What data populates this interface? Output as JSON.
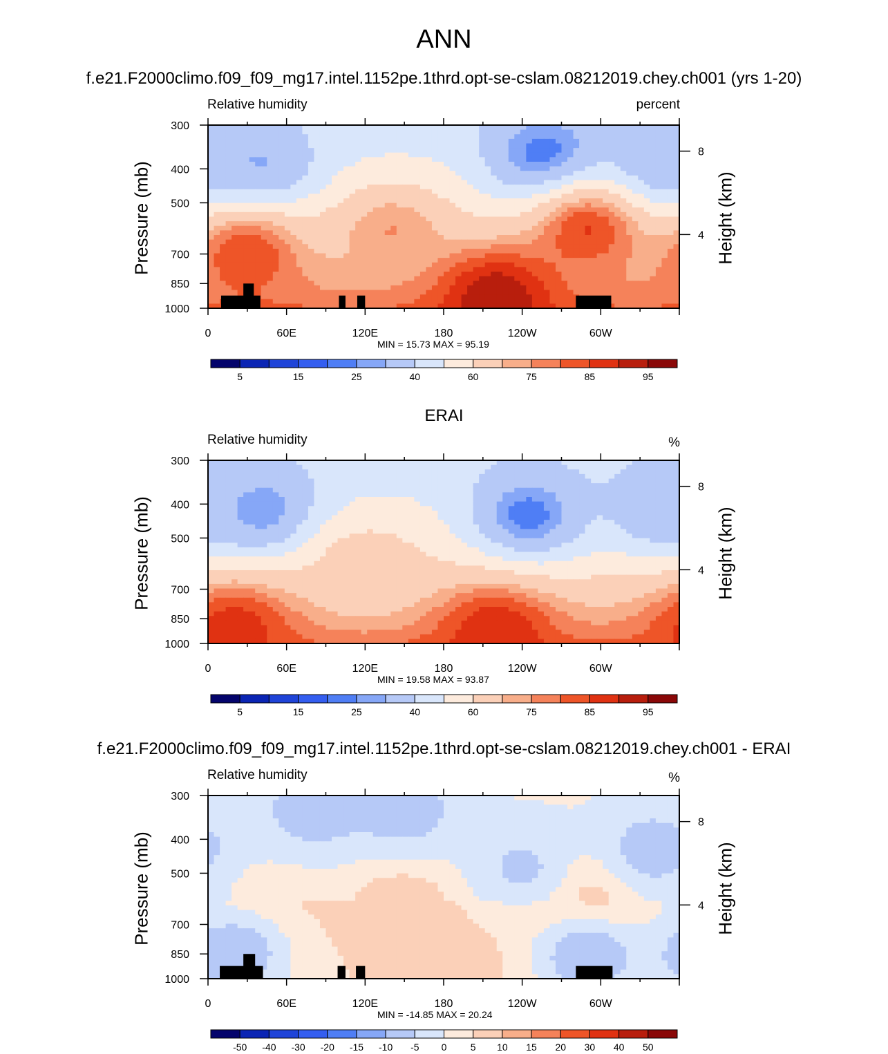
{
  "page_title": "ANN",
  "chart_data": [
    {
      "type": "heatmap",
      "title": "f.e21.F2000climo.f09_f09_mg17.intel.1152pe.1thrd.opt-se-cslam.08212019.chey.ch001 (yrs 1-20)",
      "left_string": "Relative humidity",
      "right_string": "percent",
      "ylabel": "Pressure (mb)",
      "ylabel_right": "Height (km)",
      "x_ticks": [
        "0",
        "60E",
        "120E",
        "180",
        "120W",
        "60W"
      ],
      "y_ticks": [
        "300",
        "400",
        "500",
        "700",
        "850",
        "1000"
      ],
      "y_right_ticks": [
        "8",
        "4"
      ],
      "xlim": [
        0,
        360
      ],
      "ylim": [
        1000,
        300
      ],
      "stats": "MIN =  15.73  MAX =  95.19",
      "colorbar_labels": [
        "5",
        "15",
        "25",
        "40",
        "60",
        "75",
        "85",
        "95"
      ],
      "colorbar_levels": [
        5,
        10,
        15,
        20,
        25,
        30,
        40,
        50,
        60,
        70,
        75,
        80,
        85,
        90,
        95
      ],
      "colorbar_colors": [
        "#04046c",
        "#0b25b4",
        "#1f44d8",
        "#345ef0",
        "#4f7ef5",
        "#86a7f7",
        "#b6c9f7",
        "#d9e6fb",
        "#fdebdd",
        "#fbd0b8",
        "#f8ae8a",
        "#f5825a",
        "#ee5528",
        "#e03212",
        "#b81e0d",
        "#8a0808"
      ],
      "features": [
        {
          "lon": 258,
          "p": 370,
          "value": 20
        },
        {
          "lon": 40,
          "p": 400,
          "value": 28
        },
        {
          "lon": 345,
          "p": 400,
          "value": 28
        },
        {
          "lon": 30,
          "p": 700,
          "value": 85
        },
        {
          "lon": 140,
          "p": 600,
          "value": 75
        },
        {
          "lon": 290,
          "p": 600,
          "value": 85
        },
        {
          "lon": 220,
          "p": 920,
          "value": 95
        }
      ],
      "terrain_masks": [
        {
          "lon_start": 10,
          "lon_end": 40,
          "p_top": 920
        },
        {
          "lon_start": 27,
          "lon_end": 35,
          "p_top": 850
        },
        {
          "lon_start": 100,
          "lon_end": 105,
          "p_top": 920
        },
        {
          "lon_start": 114,
          "lon_end": 120,
          "p_top": 920
        },
        {
          "lon_start": 281,
          "lon_end": 308,
          "p_top": 920
        }
      ]
    },
    {
      "type": "heatmap",
      "title": "ERAI",
      "left_string": "Relative humidity",
      "right_string": "%",
      "ylabel": "Pressure (mb)",
      "ylabel_right": "Height (km)",
      "x_ticks": [
        "0",
        "60E",
        "120E",
        "180",
        "120W",
        "60W"
      ],
      "y_ticks": [
        "300",
        "400",
        "500",
        "700",
        "850",
        "1000"
      ],
      "y_right_ticks": [
        "8",
        "4"
      ],
      "xlim": [
        0,
        360
      ],
      "ylim": [
        1000,
        300
      ],
      "stats": "MIN =  19.58  MAX =  93.87",
      "colorbar_labels": [
        "5",
        "15",
        "25",
        "40",
        "60",
        "75",
        "85",
        "95"
      ],
      "colorbar_levels": [
        5,
        10,
        15,
        20,
        25,
        30,
        40,
        50,
        60,
        70,
        75,
        80,
        85,
        90,
        95
      ],
      "colorbar_colors": [
        "#04046c",
        "#0b25b4",
        "#1f44d8",
        "#345ef0",
        "#4f7ef5",
        "#86a7f7",
        "#b6c9f7",
        "#d9e6fb",
        "#fdebdd",
        "#fbd0b8",
        "#f8ae8a",
        "#f5825a",
        "#ee5528",
        "#e03212",
        "#b81e0d",
        "#8a0808"
      ],
      "features": [
        {
          "lon": 245,
          "p": 430,
          "value": 22
        },
        {
          "lon": 42,
          "p": 420,
          "value": 25
        },
        {
          "lon": 347,
          "p": 410,
          "value": 30
        },
        {
          "lon": 120,
          "p": 600,
          "value": 65
        },
        {
          "lon": 220,
          "p": 920,
          "value": 90
        },
        {
          "lon": 20,
          "p": 900,
          "value": 88
        }
      ],
      "terrain_masks": []
    },
    {
      "type": "heatmap",
      "title": "f.e21.F2000climo.f09_f09_mg17.intel.1152pe.1thrd.opt-se-cslam.08212019.chey.ch001 - ERAI",
      "left_string": "Relative humidity",
      "right_string": "%",
      "ylabel": "Pressure (mb)",
      "ylabel_right": "Height (km)",
      "x_ticks": [
        "0",
        "60E",
        "120E",
        "180",
        "120W",
        "60W"
      ],
      "y_ticks": [
        "300",
        "400",
        "500",
        "700",
        "850",
        "1000"
      ],
      "y_right_ticks": [
        "8",
        "4"
      ],
      "xlim": [
        0,
        360
      ],
      "ylim": [
        1000,
        300
      ],
      "stats": "MIN = -14.85  MAX =  20.24",
      "colorbar_labels": [
        "-50",
        "-40",
        "-30",
        "-20",
        "-15",
        "-10",
        "-5",
        "0",
        "5",
        "10",
        "15",
        "20",
        "30",
        "40",
        "50"
      ],
      "colorbar_levels": [
        -50,
        -40,
        -30,
        -20,
        -15,
        -10,
        -5,
        0,
        5,
        10,
        15,
        20,
        30,
        40,
        50
      ],
      "colorbar_colors": [
        "#04046c",
        "#0b25b4",
        "#1f44d8",
        "#345ef0",
        "#4f7ef5",
        "#86a7f7",
        "#b6c9f7",
        "#d9e6fb",
        "#fdebdd",
        "#fbd0b8",
        "#f8ae8a",
        "#f5825a",
        "#ee5528",
        "#e03212",
        "#b81e0d",
        "#8a0808"
      ],
      "features": [
        {
          "lon": 290,
          "p": 600,
          "value": 17
        },
        {
          "lon": 150,
          "p": 600,
          "value": 10
        },
        {
          "lon": 200,
          "p": 900,
          "value": 8
        },
        {
          "lon": 40,
          "p": 650,
          "value": 8
        },
        {
          "lon": 80,
          "p": 330,
          "value": -8
        },
        {
          "lon": 150,
          "p": 330,
          "value": -8
        },
        {
          "lon": 240,
          "p": 480,
          "value": -6
        },
        {
          "lon": 340,
          "p": 430,
          "value": -8
        },
        {
          "lon": 20,
          "p": 850,
          "value": -10
        },
        {
          "lon": 290,
          "p": 860,
          "value": -10
        }
      ],
      "terrain_masks": [
        {
          "lon_start": 9,
          "lon_end": 42,
          "p_top": 920
        },
        {
          "lon_start": 27,
          "lon_end": 36,
          "p_top": 850
        },
        {
          "lon_start": 99,
          "lon_end": 105,
          "p_top": 920
        },
        {
          "lon_start": 113,
          "lon_end": 120,
          "p_top": 920
        },
        {
          "lon_start": 281,
          "lon_end": 309,
          "p_top": 920
        }
      ]
    }
  ]
}
